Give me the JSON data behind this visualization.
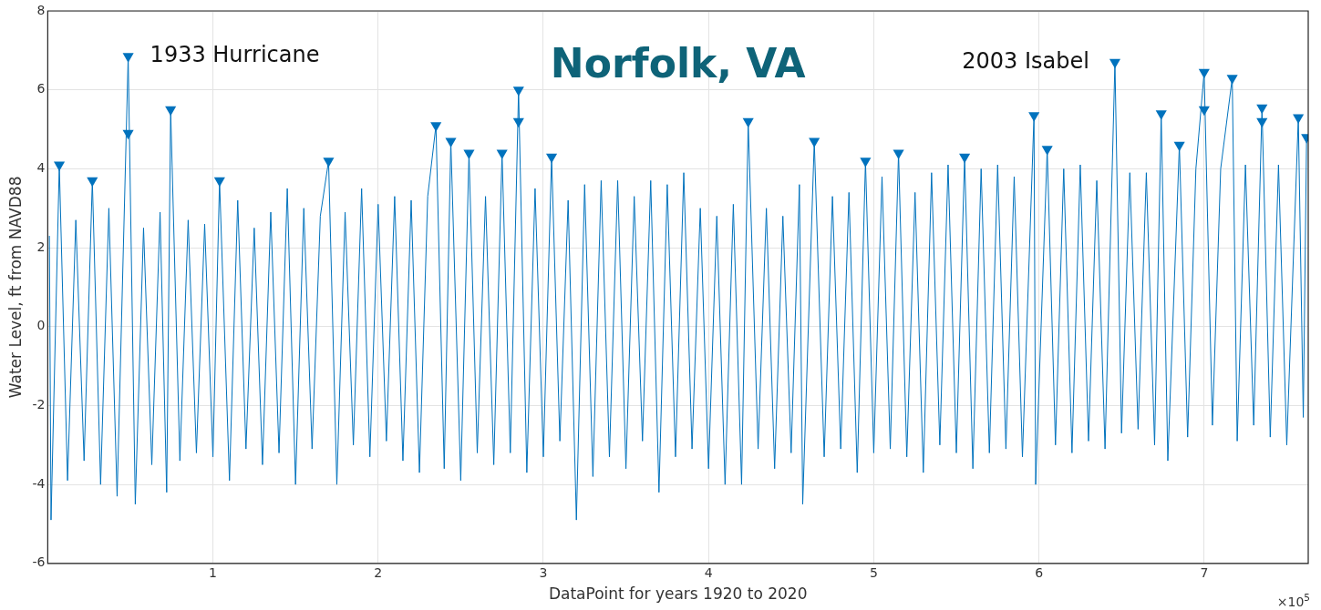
{
  "chart_data": {
    "type": "line",
    "title": "Norfolk, VA",
    "xlabel": "DataPoint for years 1920 to 2020",
    "ylabel": "Water Level, ft from NAVD88",
    "xlim": [
      0,
      7.63
    ],
    "xticks": [
      1,
      2,
      3,
      4,
      5,
      6,
      7
    ],
    "ylim": [
      -6,
      8
    ],
    "yticks": [
      -6,
      -4,
      -2,
      0,
      2,
      4,
      6,
      8
    ],
    "grid": true,
    "legend": false,
    "annotations": [
      {
        "text": "1933 Hurricane",
        "x": 0.487,
        "y": 6.85
      },
      {
        "text": "2003 Isabel",
        "x": 6.46,
        "y": 6.7
      },
      "×10$^{5}$"
    ],
    "series": [
      {
        "type": "line",
        "color": "#0072bd",
        "marker": "none",
        "x": [
          0.01,
          0.02,
          0.07,
          0.12,
          0.17,
          0.22,
          0.27,
          0.32,
          0.37,
          0.42,
          0.487,
          0.53,
          0.58,
          0.63,
          0.68,
          0.72,
          0.744,
          0.8,
          0.85,
          0.9,
          0.95,
          1.0,
          1.04,
          1.1,
          1.15,
          1.2,
          1.25,
          1.3,
          1.35,
          1.4,
          1.45,
          1.5,
          1.55,
          1.6,
          1.65,
          1.7,
          1.75,
          1.8,
          1.85,
          1.9,
          1.95,
          2.0,
          2.05,
          2.1,
          2.15,
          2.2,
          2.25,
          2.3,
          2.35,
          2.4,
          2.44,
          2.5,
          2.55,
          2.6,
          2.65,
          2.7,
          2.75,
          2.8,
          2.85,
          2.9,
          2.95,
          3.0,
          3.05,
          3.1,
          3.15,
          3.2,
          3.25,
          3.3,
          3.35,
          3.4,
          3.45,
          3.5,
          3.55,
          3.6,
          3.65,
          3.7,
          3.75,
          3.8,
          3.85,
          3.9,
          3.95,
          4.0,
          4.05,
          4.1,
          4.15,
          4.2,
          4.24,
          4.3,
          4.35,
          4.4,
          4.45,
          4.5,
          4.55,
          4.57,
          4.64,
          4.7,
          4.75,
          4.8,
          4.85,
          4.9,
          4.95,
          5.0,
          5.05,
          5.1,
          5.15,
          5.2,
          5.25,
          5.3,
          5.35,
          5.4,
          5.45,
          5.5,
          5.55,
          5.6,
          5.65,
          5.7,
          5.75,
          5.8,
          5.85,
          5.9,
          5.97,
          5.98,
          6.05,
          6.1,
          6.15,
          6.2,
          6.25,
          6.3,
          6.35,
          6.4,
          6.46,
          6.5,
          6.55,
          6.6,
          6.65,
          6.7,
          6.74,
          6.78,
          6.85,
          6.9,
          6.95,
          7.0,
          7.05,
          7.1,
          7.17,
          7.2,
          7.25,
          7.3,
          7.35,
          7.4,
          7.45,
          7.5,
          7.57,
          7.6,
          7.62
        ],
        "values": [
          2.3,
          -4.9,
          4.1,
          -3.9,
          2.7,
          -3.4,
          3.7,
          -4.0,
          3.0,
          -4.3,
          6.85,
          -4.5,
          2.5,
          -3.5,
          2.9,
          -4.2,
          5.5,
          -3.4,
          2.7,
          -3.2,
          2.6,
          -3.3,
          3.7,
          -3.9,
          3.2,
          -3.1,
          2.5,
          -3.5,
          2.9,
          -3.2,
          3.5,
          -4.0,
          3.0,
          -3.1,
          2.8,
          4.2,
          -4.0,
          2.9,
          -3.0,
          3.5,
          -3.3,
          3.1,
          -2.9,
          3.3,
          -3.4,
          3.2,
          -3.7,
          3.3,
          5.1,
          -3.6,
          4.7,
          -3.9,
          4.4,
          -3.2,
          3.3,
          -3.5,
          4.4,
          -3.2,
          6.0,
          -3.7,
          3.5,
          -3.3,
          4.3,
          -2.9,
          3.2,
          -4.9,
          3.6,
          -3.8,
          3.7,
          -3.3,
          3.7,
          -3.6,
          3.3,
          -2.9,
          3.7,
          -4.2,
          3.6,
          -3.3,
          3.9,
          -3.1,
          3.0,
          -3.6,
          2.8,
          -4.0,
          3.1,
          -4.0,
          5.2,
          -3.1,
          3.0,
          -3.6,
          2.8,
          -3.2,
          3.6,
          -4.5,
          4.7,
          -3.3,
          3.3,
          -3.1,
          3.4,
          -3.7,
          4.2,
          -3.2,
          3.8,
          -3.1,
          4.4,
          -3.3,
          3.4,
          -3.7,
          3.9,
          -3.0,
          4.1,
          -3.2,
          4.3,
          -3.6,
          4.0,
          -3.2,
          4.1,
          -3.1,
          3.8,
          -3.3,
          5.35,
          -4.0,
          4.5,
          -3.0,
          4.0,
          -3.2,
          4.1,
          -2.9,
          3.7,
          -3.1,
          6.7,
          -2.7,
          3.9,
          -2.6,
          3.9,
          -3.0,
          5.4,
          -3.4,
          4.6,
          -2.8,
          4.0,
          6.45,
          -2.5,
          4.0,
          6.3,
          -2.9,
          4.1,
          -2.5,
          5.55,
          -2.8,
          4.1,
          -3.0,
          5.3,
          -2.3,
          4.8
        ]
      },
      {
        "type": "scatter",
        "color": "#0072bd",
        "marker": "triangle",
        "x": [
          0.07,
          0.27,
          0.487,
          0.487,
          0.744,
          1.04,
          1.7,
          2.35,
          2.44,
          2.55,
          2.75,
          2.85,
          2.85,
          3.05,
          4.24,
          4.64,
          4.95,
          5.15,
          5.55,
          5.97,
          6.05,
          6.46,
          6.74,
          6.85,
          7.0,
          7.0,
          7.17,
          7.35,
          7.35,
          7.57,
          7.62
        ],
        "values": [
          4.1,
          3.7,
          6.85,
          4.9,
          5.5,
          3.7,
          4.2,
          5.1,
          4.7,
          4.4,
          4.4,
          6.0,
          5.2,
          4.3,
          5.2,
          4.7,
          4.2,
          4.4,
          4.3,
          5.35,
          4.5,
          6.7,
          5.4,
          4.6,
          6.45,
          5.5,
          6.3,
          5.55,
          5.2,
          5.3,
          4.8
        ]
      }
    ]
  }
}
